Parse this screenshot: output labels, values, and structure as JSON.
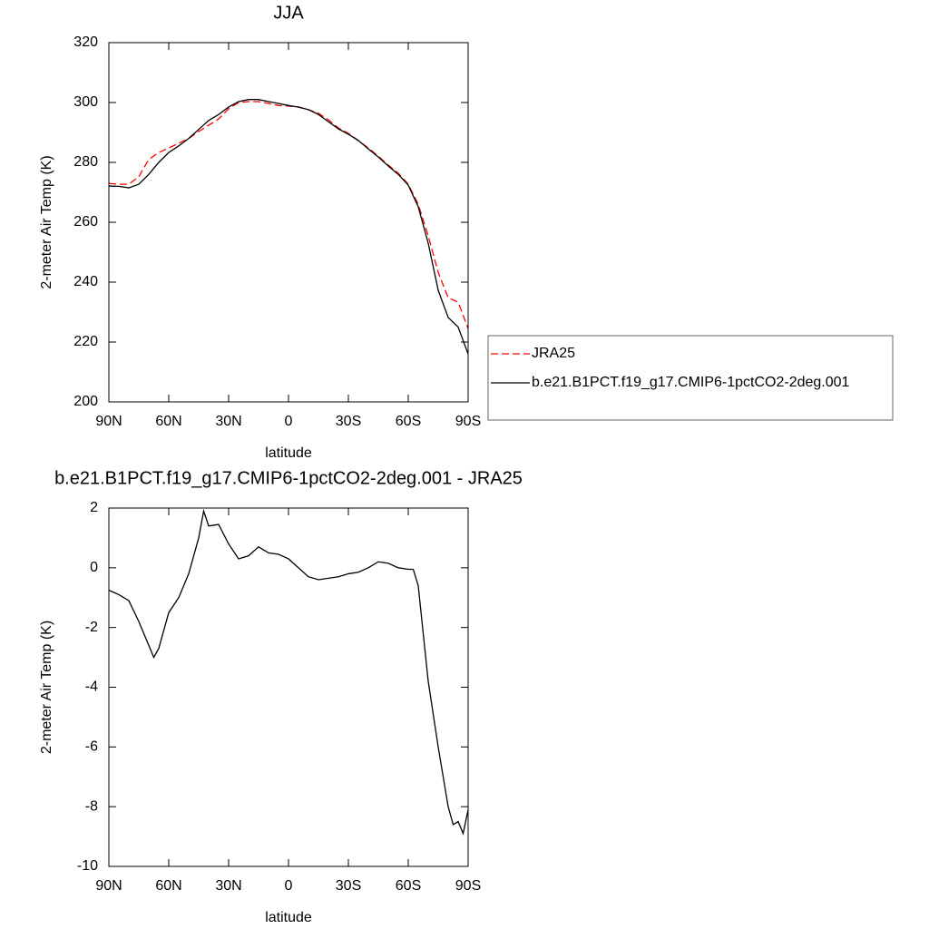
{
  "chart_data": [
    {
      "type": "line",
      "title": "JJA",
      "x_label": "latitude",
      "y_label": "2-meter Air Temp (K)",
      "x": [
        90,
        85,
        80,
        75,
        70,
        65,
        60,
        55,
        50,
        45,
        40,
        35,
        30,
        25,
        20,
        15,
        10,
        5,
        0,
        -5,
        -10,
        -15,
        -20,
        -25,
        -30,
        -35,
        -40,
        -45,
        -50,
        -55,
        -60,
        -65,
        -70,
        -75,
        -80,
        -85,
        -90
      ],
      "series": [
        {
          "name": "JRA25",
          "color": "#ff0000",
          "line_style": "dashed",
          "values": [
            273,
            272.7,
            272.7,
            275.2,
            281,
            283.3,
            284.8,
            286.4,
            288,
            290.3,
            292.4,
            294.5,
            297.9,
            300,
            300.3,
            300.3,
            299.7,
            299,
            298.8,
            298.5,
            297.6,
            296.4,
            294.2,
            291.5,
            289.7,
            287.3,
            284.8,
            282.1,
            279.1,
            276.4,
            272.7,
            266,
            255.5,
            243.3,
            234.8,
            233.3,
            224.5
          ]
        },
        {
          "name": "b.e21.B1PCT.f19_g17.CMIP6-1pctCO2-2deg.001",
          "color": "#000000",
          "line_style": "solid",
          "values": [
            272.1,
            272,
            271.5,
            272.7,
            276,
            280,
            283.3,
            285.5,
            288,
            291,
            294,
            296,
            298.5,
            300.3,
            301,
            301,
            300.3,
            299.7,
            299,
            298.5,
            297.6,
            296,
            293.6,
            291.2,
            289.4,
            287.3,
            284.5,
            281.8,
            278.8,
            276,
            272.4,
            265.2,
            253,
            237.3,
            228.2,
            225,
            216
          ]
        }
      ],
      "xlim": [
        90,
        -90
      ],
      "xticks": [
        {
          "value": 90,
          "label": "90N"
        },
        {
          "value": 60,
          "label": "60N"
        },
        {
          "value": 30,
          "label": "30N"
        },
        0,
        {
          "value": -30,
          "label": "30S"
        },
        {
          "value": -60,
          "label": "60S"
        },
        {
          "value": -90,
          "label": "90S"
        }
      ],
      "ylim": [
        200,
        320
      ],
      "yticks": [
        200,
        220,
        240,
        260,
        280,
        300,
        320
      ],
      "legend": "right"
    },
    {
      "type": "line",
      "title": "b.e21.B1PCT.f19_g17.CMIP6-1pctCO2-2deg.001 - JRA25",
      "x_label": "latitude",
      "y_label": "2-meter Air Temp (K)",
      "x": [
        90,
        85,
        80,
        75,
        70,
        67.5,
        65,
        60,
        55,
        50,
        45,
        42.5,
        40,
        35,
        30,
        25,
        20,
        15,
        10,
        5,
        0,
        -5,
        -10,
        -15,
        -20,
        -25,
        -30,
        -35,
        -40,
        -45,
        -50,
        -55,
        -60,
        -62.5,
        -65,
        -70,
        -75,
        -80,
        -82.5,
        -85,
        -87.5,
        -90
      ],
      "values": [
        -0.75,
        -0.9,
        -1.1,
        -1.8,
        -2.6,
        -3.0,
        -2.7,
        -1.5,
        -1.0,
        -0.2,
        1.0,
        1.9,
        1.4,
        1.45,
        0.8,
        0.3,
        0.4,
        0.7,
        0.5,
        0.45,
        0.3,
        0.0,
        -0.3,
        -0.4,
        -0.35,
        -0.3,
        -0.2,
        -0.15,
        0.0,
        0.2,
        0.15,
        0.0,
        -0.05,
        -0.05,
        -0.6,
        -3.8,
        -6.0,
        -8.0,
        -8.6,
        -8.5,
        -8.9,
        -8.1
      ],
      "color": "#000000",
      "xlim": [
        90,
        -90
      ],
      "xticks": [
        {
          "value": 90,
          "label": "90N"
        },
        {
          "value": 60,
          "label": "60N"
        },
        {
          "value": 30,
          "label": "30N"
        },
        0,
        {
          "value": -30,
          "label": "30S"
        },
        {
          "value": -60,
          "label": "60S"
        },
        {
          "value": -90,
          "label": "90S"
        }
      ],
      "ylim": [
        -10,
        2
      ],
      "yticks": [
        -10,
        -8,
        -6,
        -4,
        -2,
        0,
        2
      ]
    }
  ]
}
